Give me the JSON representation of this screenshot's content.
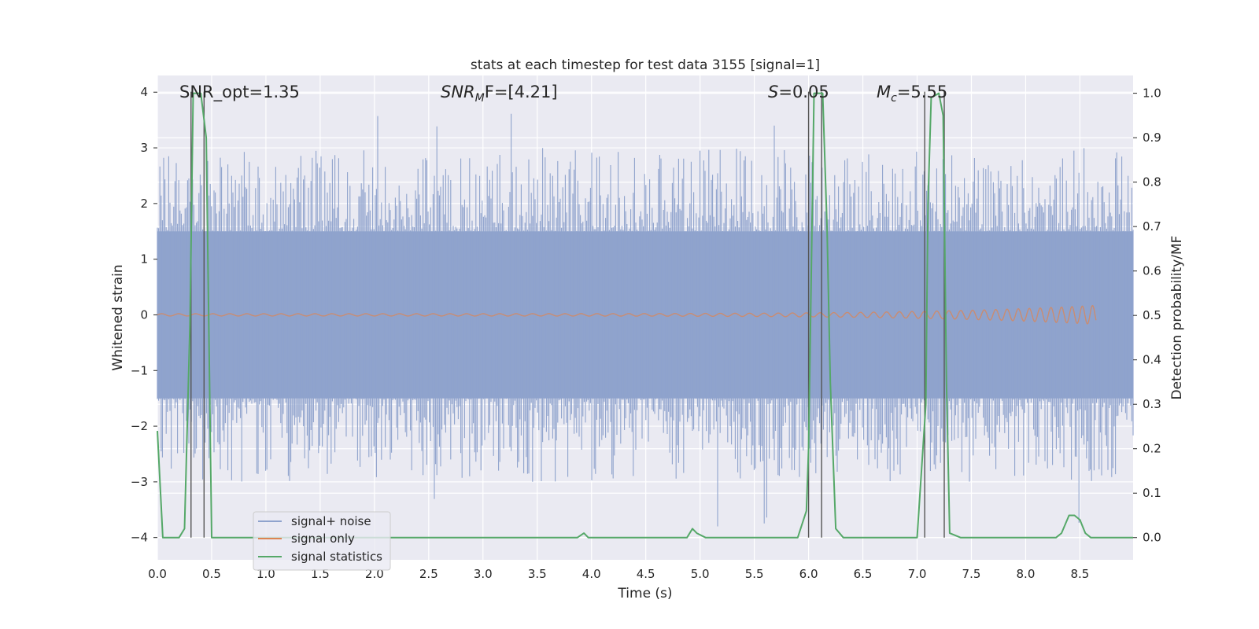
{
  "chart_data": {
    "type": "line",
    "title": "stats at each timestep for test data 3155 [signal=1]",
    "xlabel": "Time (s)",
    "ylabel_left": "Whitened strain",
    "ylabel_right": "Detection probability/MF",
    "xlim": [
      0.0,
      8.99
    ],
    "ylim_left": [
      -4.4,
      4.3
    ],
    "ylim_right": [
      -0.05,
      1.04
    ],
    "x_ticks": [
      "0.0",
      "0.5",
      "1.0",
      "1.5",
      "2.0",
      "2.5",
      "3.0",
      "3.5",
      "4.0",
      "4.5",
      "5.0",
      "5.5",
      "6.0",
      "6.5",
      "7.0",
      "7.5",
      "8.0",
      "8.5"
    ],
    "y_left_ticks": [
      "4",
      "3",
      "2",
      "1",
      "0",
      "−1",
      "−2",
      "−3",
      "−4"
    ],
    "y_right_ticks": [
      "1.0",
      "0.9",
      "0.8",
      "0.7",
      "0.6",
      "0.5",
      "0.4",
      "0.3",
      "0.2",
      "0.1",
      "0.0"
    ],
    "grid": true,
    "legend_position": "lower-left",
    "annotations": {
      "snr_opt": "SNR_opt=1.35",
      "snr_mf_prefix": "SNR",
      "snr_mf_sub": "M",
      "snr_mf_rest": "F=[4.21]",
      "s_var": "S",
      "s_rest": "=0.05",
      "mc_var": "M",
      "mc_sub": "c",
      "mc_rest": "=5.55"
    },
    "vertical_lines_s": [
      0.31,
      0.43,
      6.0,
      6.12,
      7.07,
      7.25
    ],
    "series": [
      {
        "name": "signal+ noise",
        "color": "#8fa3cd",
        "axis": "left",
        "kind": "noise",
        "x_range": [
          0.0,
          8.99
        ],
        "envelope": [
          -1.5,
          1.5
        ],
        "spike_range": [
          -4.0,
          3.9
        ]
      },
      {
        "name": "signal only",
        "color": "#dd8452",
        "axis": "left",
        "kind": "chirp",
        "x_range": [
          0.0,
          8.65
        ],
        "amplitude_end": 0.15
      },
      {
        "name": "signal statistics",
        "color": "#55a868",
        "axis": "right",
        "kind": "line",
        "x": [
          0.0,
          0.05,
          0.1,
          0.15,
          0.2,
          0.25,
          0.3,
          0.33,
          0.35,
          0.38,
          0.4,
          0.45,
          0.5,
          0.55,
          0.6,
          0.7,
          1.0,
          1.5,
          2.0,
          2.5,
          3.0,
          3.5,
          3.87,
          3.93,
          3.97,
          4.05,
          4.5,
          4.8,
          4.88,
          4.93,
          4.97,
          5.05,
          5.1,
          5.5,
          5.9,
          5.98,
          6.0,
          6.05,
          6.1,
          6.13,
          6.17,
          6.2,
          6.25,
          6.32,
          6.4,
          6.8,
          7.0,
          7.08,
          7.1,
          7.13,
          7.2,
          7.24,
          7.27,
          7.3,
          7.4,
          7.8,
          8.2,
          8.28,
          8.33,
          8.4,
          8.45,
          8.5,
          8.55,
          8.6,
          8.99
        ],
        "y": [
          0.24,
          0.0,
          0.0,
          0.0,
          0.0,
          0.02,
          0.48,
          1.0,
          1.0,
          1.0,
          1.0,
          0.9,
          0.0,
          0.0,
          0.0,
          0.0,
          0.0,
          0.0,
          0.0,
          0.0,
          0.0,
          0.0,
          0.0,
          0.01,
          0.0,
          0.0,
          0.0,
          0.0,
          0.0,
          0.02,
          0.01,
          0.0,
          0.0,
          0.0,
          0.0,
          0.06,
          0.2,
          1.0,
          1.0,
          1.0,
          0.7,
          0.35,
          0.02,
          0.0,
          0.0,
          0.0,
          0.0,
          0.3,
          0.75,
          0.99,
          1.0,
          0.95,
          0.35,
          0.01,
          0.0,
          0.0,
          0.0,
          0.0,
          0.01,
          0.05,
          0.05,
          0.04,
          0.01,
          0.0,
          0.0
        ]
      }
    ]
  }
}
